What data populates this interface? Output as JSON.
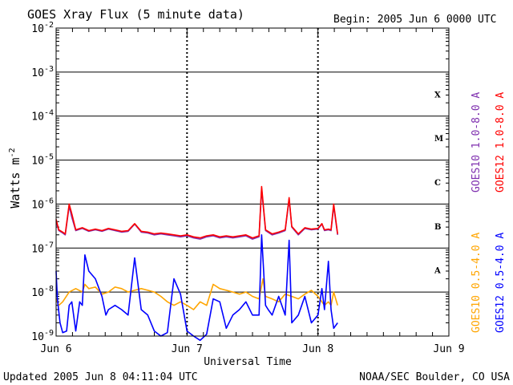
{
  "chart_data": {
    "type": "line",
    "title": "GOES Xray Flux (5 minute data)",
    "begin_text": "Begin:  2005 Jun 6 0000 UTC",
    "xlabel": "Universal Time",
    "ylabel": "Watts m",
    "ylabel_sup": "-2",
    "y_scale": "log",
    "ylim": [
      1e-09,
      0.01
    ],
    "xlim": [
      0,
      3
    ],
    "x_ticks": [
      {
        "value": 0,
        "label": "Jun 6"
      },
      {
        "value": 1,
        "label": "Jun 7"
      },
      {
        "value": 2,
        "label": "Jun 8"
      },
      {
        "value": 3,
        "label": "Jun 9"
      }
    ],
    "y_ticks": [
      {
        "exp": -2,
        "base": "10",
        "sup": "-2"
      },
      {
        "exp": -3,
        "base": "10",
        "sup": "-3"
      },
      {
        "exp": -4,
        "base": "10",
        "sup": "-4"
      },
      {
        "exp": -5,
        "base": "10",
        "sup": "-5"
      },
      {
        "exp": -6,
        "base": "10",
        "sup": "-6"
      },
      {
        "exp": -7,
        "base": "10",
        "sup": "-7"
      },
      {
        "exp": -8,
        "base": "10",
        "sup": "-8"
      },
      {
        "exp": -9,
        "base": "10",
        "sup": "-9"
      }
    ],
    "grid": true,
    "flare_classes": [
      {
        "label": "X",
        "exp": -3.5
      },
      {
        "label": "M",
        "exp": -4.5
      },
      {
        "label": "C",
        "exp": -5.5
      },
      {
        "label": "B",
        "exp": -6.5
      },
      {
        "label": "A",
        "exp": -7.5
      }
    ],
    "series": [
      {
        "name": "GOES10 0.5-4.0 A",
        "color": "#ffa500",
        "x": [
          0,
          0.02,
          0.05,
          0.1,
          0.15,
          0.2,
          0.22,
          0.25,
          0.3,
          0.35,
          0.4,
          0.45,
          0.5,
          0.55,
          0.6,
          0.65,
          0.7,
          0.75,
          0.8,
          0.85,
          0.9,
          0.95,
          1.0,
          1.05,
          1.1,
          1.15,
          1.2,
          1.25,
          1.3,
          1.35,
          1.4,
          1.45,
          1.5,
          1.55,
          1.58,
          1.6,
          1.65,
          1.7,
          1.75,
          1.8,
          1.85,
          1.9,
          1.95,
          2.0,
          2.03,
          2.05,
          2.08,
          2.1,
          2.12,
          2.15
        ],
        "y": [
          7e-09,
          5e-09,
          6e-09,
          1e-08,
          1.2e-08,
          1e-08,
          1.5e-08,
          1.2e-08,
          1.3e-08,
          9e-09,
          1e-08,
          1.3e-08,
          1.2e-08,
          1e-08,
          1.1e-08,
          1.2e-08,
          1.1e-08,
          1e-08,
          8e-09,
          6e-09,
          5e-09,
          6e-09,
          5e-09,
          4e-09,
          6e-09,
          5e-09,
          1.5e-08,
          1.2e-08,
          1.1e-08,
          1e-08,
          9e-09,
          1e-08,
          8e-09,
          7e-09,
          2e-08,
          8e-09,
          7e-09,
          6e-09,
          9e-09,
          8e-09,
          7e-09,
          9e-09,
          1.1e-08,
          8e-09,
          6e-09,
          5e-09,
          6e-09,
          5e-09,
          1e-08,
          5e-09
        ]
      },
      {
        "name": "GOES12 0.5-4.0 A",
        "color": "#0000ff",
        "x": [
          0,
          0.01,
          0.03,
          0.05,
          0.08,
          0.1,
          0.12,
          0.15,
          0.18,
          0.2,
          0.22,
          0.25,
          0.3,
          0.35,
          0.38,
          0.4,
          0.45,
          0.5,
          0.55,
          0.6,
          0.65,
          0.7,
          0.75,
          0.8,
          0.85,
          0.9,
          0.95,
          1.0,
          1.05,
          1.1,
          1.15,
          1.2,
          1.25,
          1.3,
          1.35,
          1.4,
          1.45,
          1.5,
          1.55,
          1.57,
          1.6,
          1.62,
          1.65,
          1.7,
          1.75,
          1.78,
          1.8,
          1.85,
          1.9,
          1.95,
          2.0,
          2.03,
          2.05,
          2.08,
          2.1,
          2.12,
          2.15
        ],
        "y": [
          3e-08,
          7e-09,
          2e-09,
          1.2e-09,
          1.3e-09,
          5e-09,
          6e-09,
          1.3e-09,
          6e-09,
          5e-09,
          7e-08,
          3e-08,
          2e-08,
          8e-09,
          3e-09,
          4e-09,
          5e-09,
          4e-09,
          3e-09,
          6e-08,
          4e-09,
          3e-09,
          1.3e-09,
          1e-09,
          1.2e-09,
          2e-08,
          9e-09,
          1.3e-09,
          1e-09,
          8e-10,
          1.1e-09,
          7e-09,
          6e-09,
          1.5e-09,
          3e-09,
          4e-09,
          6e-09,
          3e-09,
          3e-09,
          2e-07,
          5e-09,
          4e-09,
          3e-09,
          8e-09,
          3e-09,
          1.5e-07,
          2e-09,
          3e-09,
          8e-09,
          2e-09,
          3e-09,
          1.2e-08,
          4e-09,
          5e-08,
          4e-09,
          1.5e-09,
          2e-09
        ]
      },
      {
        "name": "GOES10 1.0-8.0 A",
        "color": "#7f2faf",
        "x": [
          0,
          0.02,
          0.05,
          0.07,
          0.1,
          0.12,
          0.15,
          0.2,
          0.25,
          0.3,
          0.35,
          0.4,
          0.45,
          0.5,
          0.55,
          0.6,
          0.65,
          0.7,
          0.75,
          0.8,
          0.85,
          0.9,
          0.95,
          1.0,
          1.05,
          1.1,
          1.15,
          1.2,
          1.25,
          1.3,
          1.35,
          1.4,
          1.45,
          1.5,
          1.55,
          1.57,
          1.6,
          1.65,
          1.7,
          1.75,
          1.78,
          1.8,
          1.85,
          1.9,
          1.95,
          2.0,
          2.03,
          2.05,
          2.08,
          2.1,
          2.12,
          2.15
        ],
        "y": [
          4e-07,
          2.5e-07,
          2.2e-07,
          2e-07,
          9e-07,
          5e-07,
          2.5e-07,
          2.8e-07,
          2.4e-07,
          2.6e-07,
          2.4e-07,
          2.7e-07,
          2.5e-07,
          2.3e-07,
          2.4e-07,
          3.5e-07,
          2.3e-07,
          2.2e-07,
          2e-07,
          2.1e-07,
          2e-07,
          1.9e-07,
          1.8e-07,
          1.9e-07,
          1.7e-07,
          1.6e-07,
          1.8e-07,
          1.9e-07,
          1.7e-07,
          1.8e-07,
          1.7e-07,
          1.8e-07,
          1.9e-07,
          1.6e-07,
          1.8e-07,
          2.2e-06,
          2.5e-07,
          2e-07,
          2.2e-07,
          2.5e-07,
          1.3e-06,
          3e-07,
          2e-07,
          2.8e-07,
          2.6e-07,
          2.7e-07,
          3.5e-07,
          2.5e-07,
          2.6e-07,
          2.5e-07,
          9e-07,
          2e-07
        ]
      },
      {
        "name": "GOES12 1.0-8.0 A",
        "color": "#ff0000",
        "x": [
          0,
          0.02,
          0.05,
          0.07,
          0.1,
          0.12,
          0.15,
          0.2,
          0.25,
          0.3,
          0.35,
          0.4,
          0.45,
          0.5,
          0.55,
          0.6,
          0.65,
          0.7,
          0.75,
          0.8,
          0.85,
          0.9,
          0.95,
          1.0,
          1.05,
          1.1,
          1.15,
          1.2,
          1.25,
          1.3,
          1.35,
          1.4,
          1.45,
          1.5,
          1.55,
          1.57,
          1.6,
          1.65,
          1.7,
          1.75,
          1.78,
          1.8,
          1.85,
          1.9,
          1.95,
          2.0,
          2.03,
          2.05,
          2.08,
          2.1,
          2.12,
          2.15
        ],
        "y": [
          4.5e-07,
          2.6e-07,
          2.3e-07,
          2.1e-07,
          1e-06,
          6e-07,
          2.6e-07,
          2.9e-07,
          2.5e-07,
          2.7e-07,
          2.5e-07,
          2.8e-07,
          2.6e-07,
          2.4e-07,
          2.5e-07,
          3.6e-07,
          2.4e-07,
          2.3e-07,
          2.1e-07,
          2.2e-07,
          2.1e-07,
          2e-07,
          1.9e-07,
          2e-07,
          1.8e-07,
          1.7e-07,
          1.9e-07,
          2e-07,
          1.8e-07,
          1.9e-07,
          1.8e-07,
          1.9e-07,
          2e-07,
          1.7e-07,
          1.9e-07,
          2.5e-06,
          2.6e-07,
          2.1e-07,
          2.3e-07,
          2.6e-07,
          1.4e-06,
          3.1e-07,
          2.1e-07,
          2.9e-07,
          2.7e-07,
          2.8e-07,
          3.6e-07,
          2.6e-07,
          2.7e-07,
          2.6e-07,
          1e-06,
          2.1e-07
        ]
      }
    ]
  },
  "footer": {
    "updated": "Updated 2005 Jun  8 04:11:04 UTC",
    "credit": "NOAA/SEC Boulder, CO USA"
  }
}
